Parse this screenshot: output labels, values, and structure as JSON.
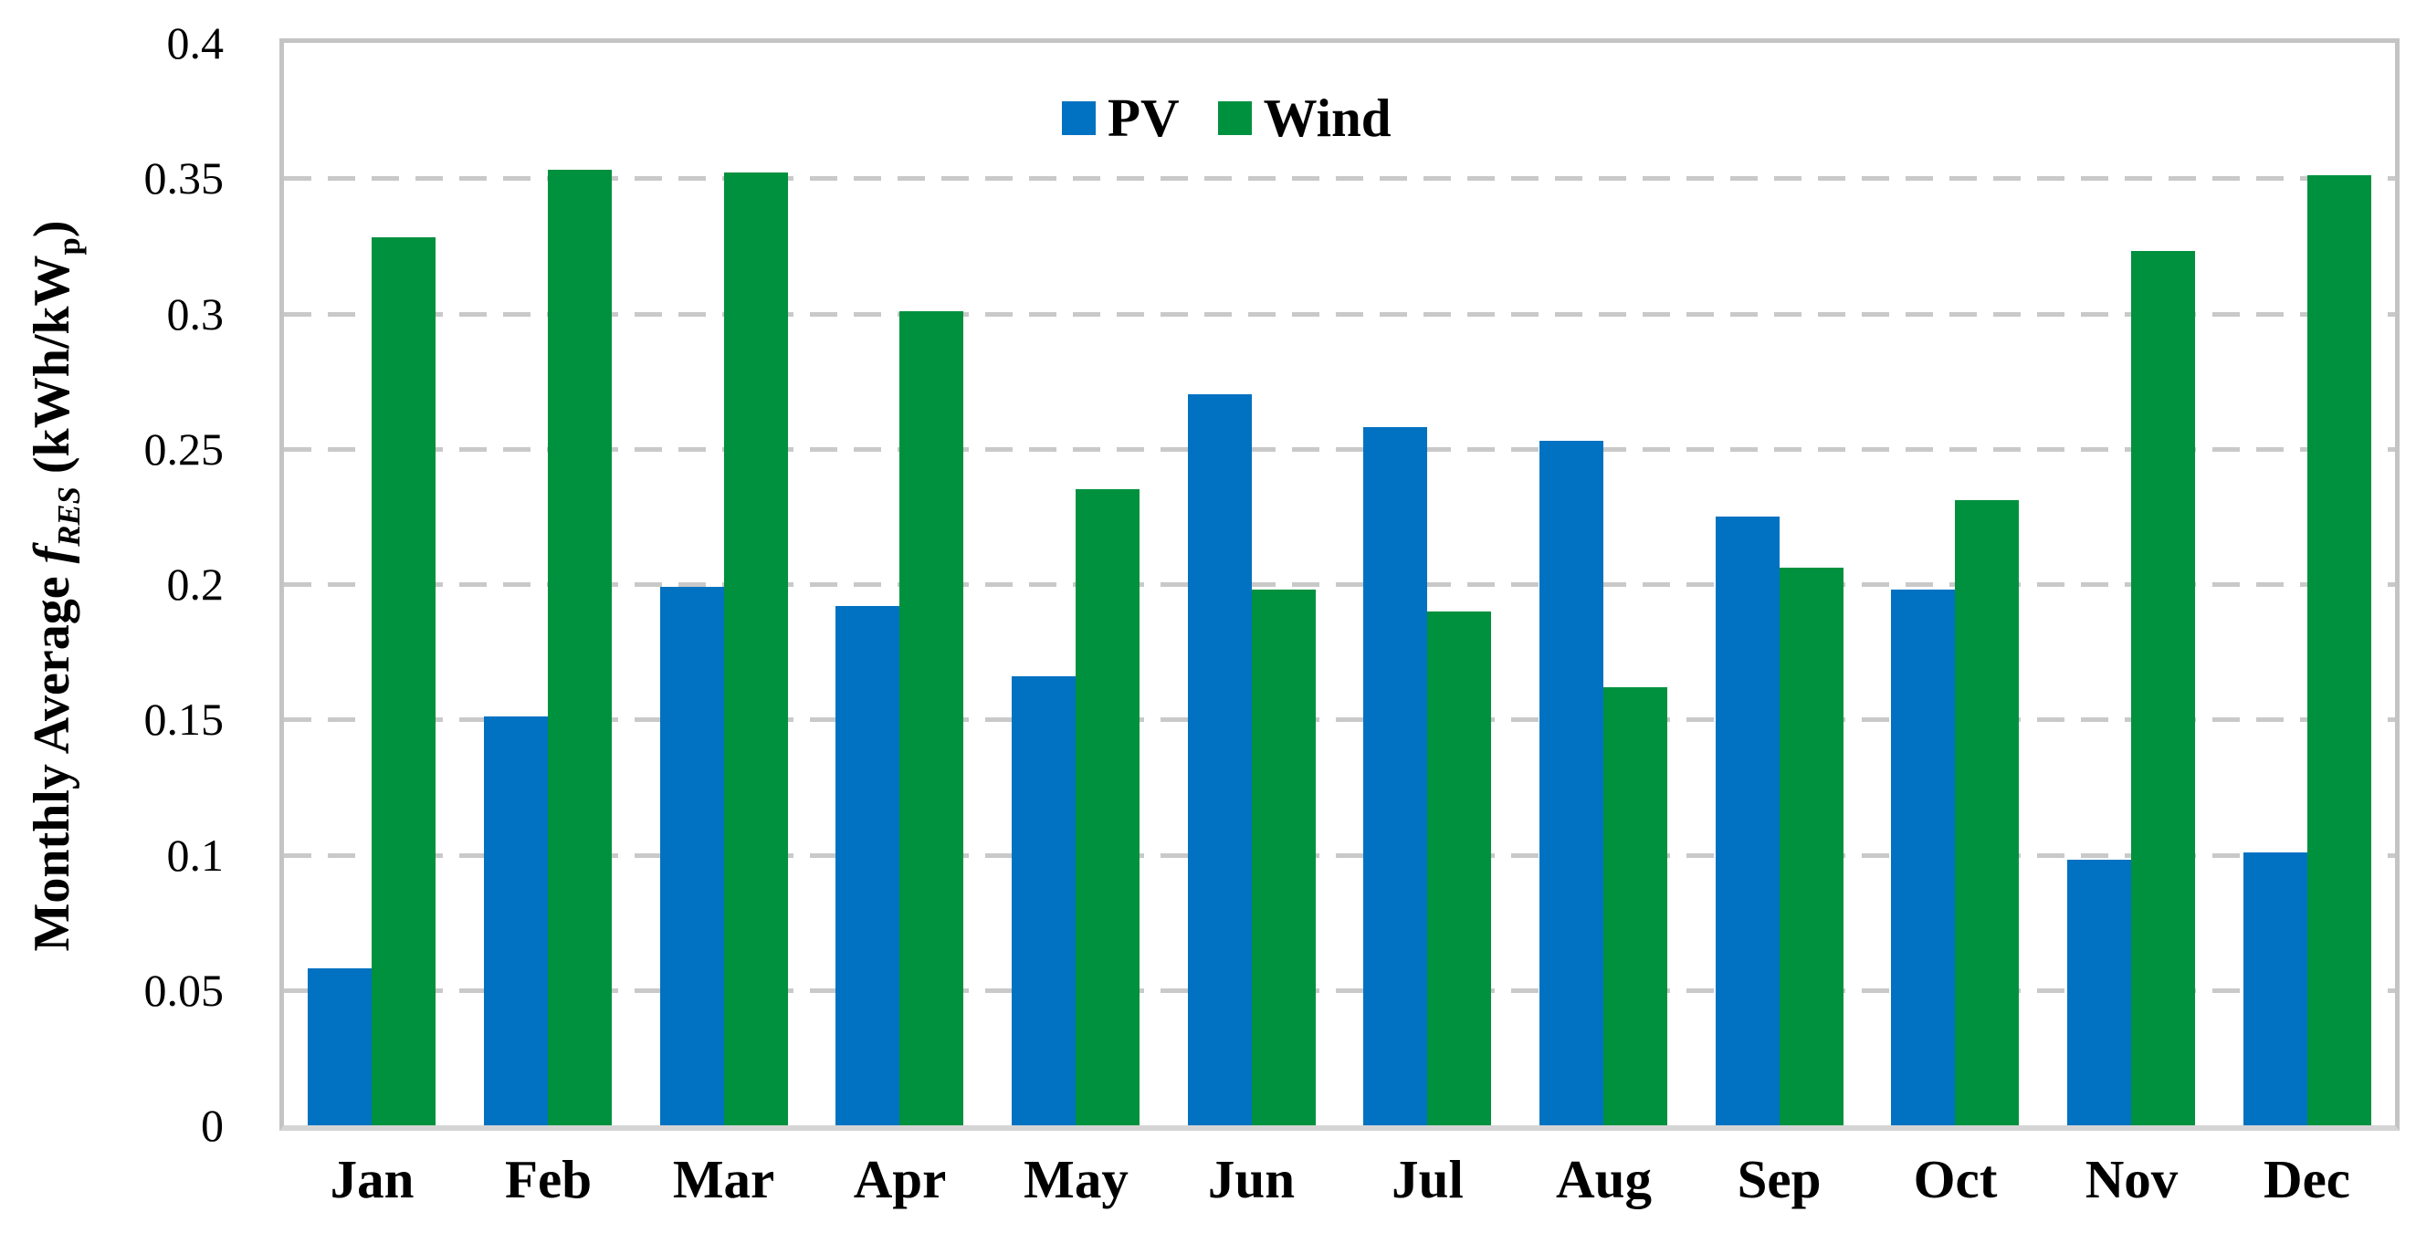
{
  "chart_data": {
    "type": "bar",
    "title": "",
    "categories": [
      "Jan",
      "Feb",
      "Mar",
      "Apr",
      "May",
      "Jun",
      "Jul",
      "Aug",
      "Sep",
      "Oct",
      "Nov",
      "Dec"
    ],
    "series": [
      {
        "name": "PV",
        "values": [
          0.058,
          0.151,
          0.199,
          0.192,
          0.166,
          0.27,
          0.258,
          0.253,
          0.225,
          0.198,
          0.098,
          0.101
        ]
      },
      {
        "name": "Wind",
        "values": [
          0.328,
          0.353,
          0.352,
          0.301,
          0.235,
          0.198,
          0.19,
          0.162,
          0.206,
          0.231,
          0.323,
          0.351
        ]
      }
    ],
    "ylabel": {
      "prefix": "Monthly Average",
      "symbol": "f",
      "symbol_sub": "RES",
      "unit_open": "(kWh/kW",
      "unit_sub": "p",
      "unit_close": ")"
    },
    "xlabel": "",
    "yticks": [
      0,
      0.05,
      0.1,
      0.15,
      0.2,
      0.25,
      0.3,
      0.35,
      0.4
    ],
    "ytick_labels": [
      "0",
      "0.05",
      "0.1",
      "0.15",
      "0.2",
      "0.25",
      "0.3",
      "0.35",
      "0.4"
    ],
    "ylim": [
      0,
      0.4
    ],
    "grid": "dashed-horizontal",
    "legend_position": "top-center"
  },
  "colors": {
    "pv": "#0072C1",
    "wind": "#00913E",
    "gridline": "#C9C9C9",
    "frame": "#C4C4C4",
    "axis_line": "#D5D5D5",
    "text": "#000000",
    "background": "#FFFFFF"
  }
}
